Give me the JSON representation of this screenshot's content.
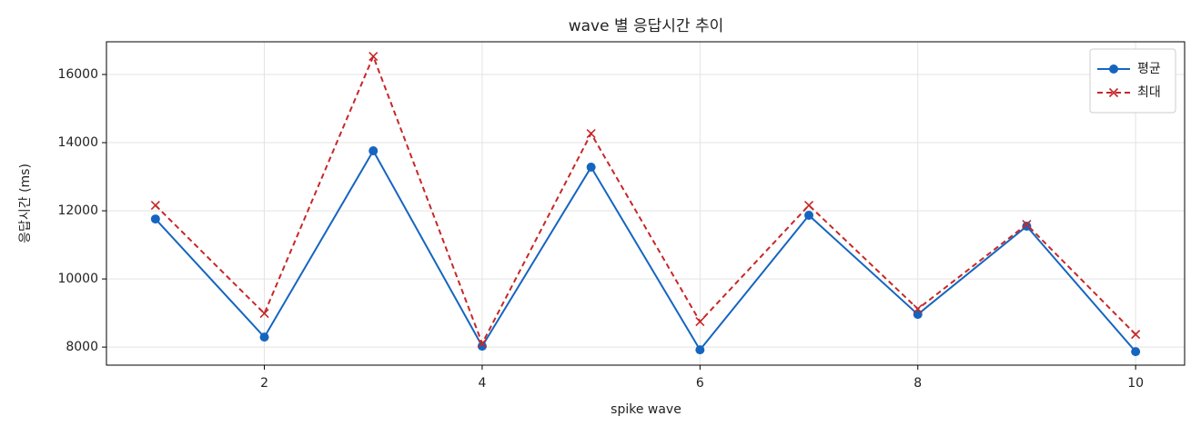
{
  "chart_data": {
    "type": "line",
    "title": "wave 별 응답시간 추이",
    "xlabel": "spike wave",
    "ylabel": "응답시간 (ms)",
    "x": [
      1,
      2,
      3,
      4,
      5,
      6,
      7,
      8,
      9,
      10
    ],
    "series": [
      {
        "name": "평균",
        "color": "#1565c0",
        "linestyle": "solid",
        "marker": "circle",
        "values": [
          11760,
          8293,
          13760,
          8027,
          13280,
          7920,
          11867,
          8960,
          11547,
          7867
        ]
      },
      {
        "name": "최대",
        "color": "#c62828",
        "linestyle": "dashed",
        "marker": "x",
        "values": [
          12160,
          8987,
          16533,
          8107,
          14267,
          8747,
          12160,
          9120,
          11600,
          8373
        ]
      }
    ],
    "xlim": [
      0.55,
      10.45
    ],
    "xticks": [
      2,
      4,
      6,
      8,
      10
    ],
    "ylim": [
      7470,
      16960
    ],
    "yticks": [
      8000,
      10000,
      12000,
      14000,
      16000
    ],
    "grid": true,
    "legend": "upper right"
  }
}
